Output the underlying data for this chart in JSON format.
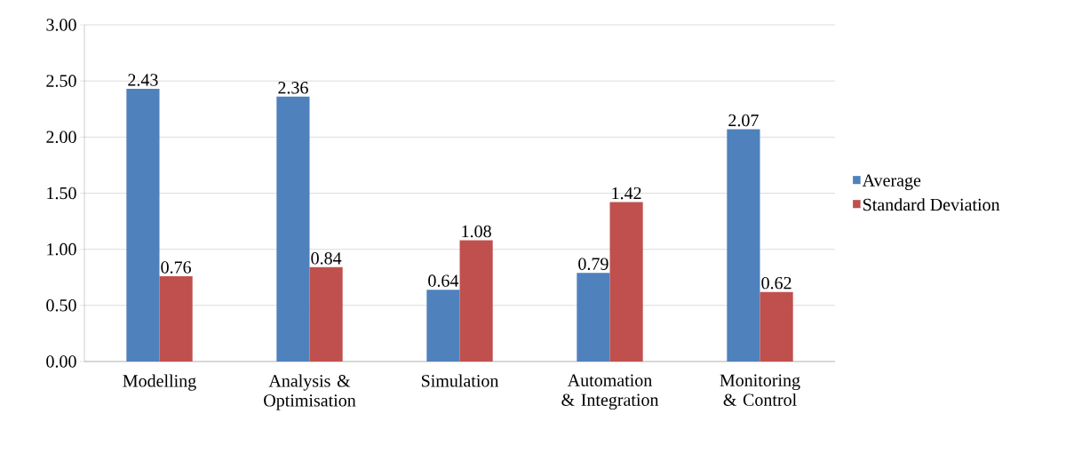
{
  "chart_data": {
    "type": "bar",
    "categories": [
      "Modelling",
      "Analysis & Optimisation",
      "Simulation",
      "Automation & Integration",
      "Monitoring & Control"
    ],
    "series": [
      {
        "name": "Average",
        "color": "#4f81bd",
        "values": [
          2.43,
          2.36,
          0.64,
          0.79,
          2.07
        ]
      },
      {
        "name": "Standard Deviation",
        "color": "#c0504d",
        "values": [
          0.76,
          0.84,
          1.08,
          1.42,
          0.62
        ]
      }
    ],
    "ylim": [
      0,
      3
    ],
    "yticks": [
      {
        "value": 0,
        "label": "0.00"
      },
      {
        "value": 0.5,
        "label": "0.50"
      },
      {
        "value": 1,
        "label": "1.00"
      },
      {
        "value": 1.5,
        "label": "1.50"
      },
      {
        "value": 2,
        "label": "2.00"
      },
      {
        "value": 2.5,
        "label": "2.50"
      },
      {
        "value": 3,
        "label": "3.00"
      }
    ],
    "grid": "y",
    "legend": "right",
    "data_labels": true
  }
}
